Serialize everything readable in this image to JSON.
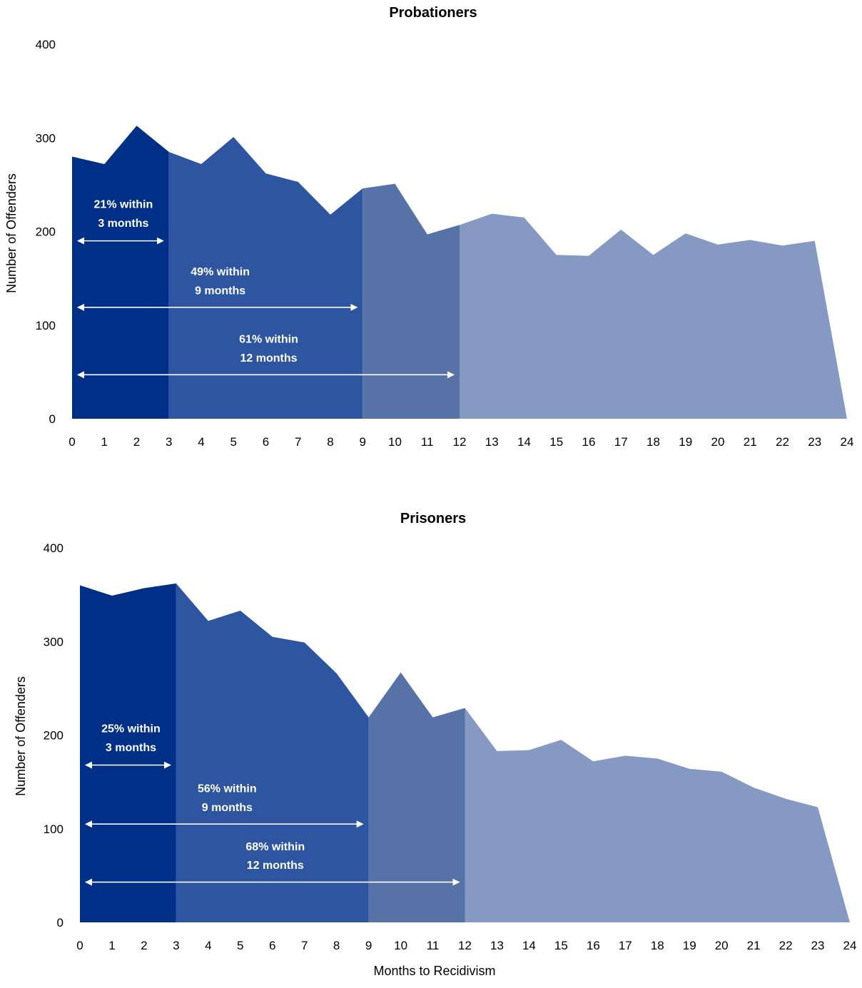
{
  "chart_data": [
    {
      "type": "area",
      "title": "Probationers",
      "ylabel": "Number of Offenders",
      "xlabel": "",
      "ylim": [
        0,
        400
      ],
      "yticks": [
        "0",
        "100",
        "200",
        "300",
        "400"
      ],
      "x": [
        0,
        1,
        2,
        3,
        4,
        5,
        6,
        7,
        8,
        9,
        10,
        11,
        12,
        13,
        14,
        15,
        16,
        17,
        18,
        19,
        20,
        21,
        22,
        23,
        24
      ],
      "values": [
        280,
        272,
        313,
        285,
        272,
        301,
        262,
        253,
        218,
        246,
        251,
        197,
        207,
        219,
        215,
        175,
        174,
        202,
        175,
        198,
        186,
        191,
        185,
        190,
        0
      ],
      "bands": [
        {
          "from": 0,
          "to": 3,
          "color": "#002f87"
        },
        {
          "from": 3,
          "to": 9,
          "color": "#2e56a0"
        },
        {
          "from": 9,
          "to": 12,
          "color": "#5672a6"
        },
        {
          "from": 12,
          "to": 24,
          "color": "#8599c3"
        }
      ],
      "annotations": [
        {
          "line1": "21% within",
          "line2": "3 months",
          "from": 0,
          "to": 3,
          "arrow_y": 190,
          "text_y1": 225,
          "text_y2": 205
        },
        {
          "line1": "49% within",
          "line2": "9 months",
          "from": 0,
          "to": 9,
          "arrow_y": 119,
          "text_y1": 153,
          "text_y2": 133
        },
        {
          "line1": "61% within",
          "line2": "12 months",
          "from": 0,
          "to": 12,
          "arrow_y": 47,
          "text_y1": 81,
          "text_y2": 61
        }
      ]
    },
    {
      "type": "area",
      "title": "Prisoners",
      "ylabel": "Number of Offenders",
      "xlabel": "Months to Recidivism",
      "ylim": [
        0,
        400
      ],
      "yticks": [
        "0",
        "100",
        "200",
        "300",
        "400"
      ],
      "x": [
        0,
        1,
        2,
        3,
        4,
        5,
        6,
        7,
        8,
        9,
        10,
        11,
        12,
        13,
        14,
        15,
        16,
        17,
        18,
        19,
        20,
        21,
        22,
        23,
        24
      ],
      "values": [
        360,
        349,
        357,
        362,
        322,
        333,
        305,
        299,
        266,
        219,
        267,
        219,
        229,
        183,
        184,
        195,
        172,
        178,
        175,
        164,
        161,
        144,
        132,
        123,
        0
      ],
      "bands": [
        {
          "from": 0,
          "to": 3,
          "color": "#002f87"
        },
        {
          "from": 3,
          "to": 9,
          "color": "#2e56a0"
        },
        {
          "from": 9,
          "to": 12,
          "color": "#5672a6"
        },
        {
          "from": 12,
          "to": 24,
          "color": "#8599c3"
        }
      ],
      "annotations": [
        {
          "line1": "25% within",
          "line2": "3 months",
          "from": 0,
          "to": 3,
          "arrow_y": 168,
          "text_y1": 203,
          "text_y2": 183
        },
        {
          "line1": "56% within",
          "line2": "9 months",
          "from": 0,
          "to": 9,
          "arrow_y": 105,
          "text_y1": 139,
          "text_y2": 119
        },
        {
          "line1": "68% within",
          "line2": "12 months",
          "from": 0,
          "to": 12,
          "arrow_y": 43,
          "text_y1": 77,
          "text_y2": 57
        }
      ]
    }
  ]
}
